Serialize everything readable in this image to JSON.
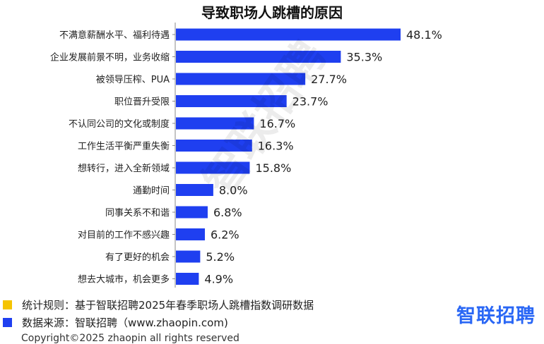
{
  "chart_data": {
    "type": "bar",
    "orientation": "horizontal",
    "title": "导致职场人跳槽的原因",
    "categories": [
      "不满意薪酬水平、福利待遇",
      "企业发展前景不明，业务收缩",
      "被领导压榨、PUA",
      "职位晋升受限",
      "不认同公司的文化或制度",
      "工作生活平衡严重失衡",
      "想转行，进入全新领域",
      "通勤时间",
      "同事关系不和谐",
      "对目前的工作不感兴趣",
      "有了更好的机会",
      "想去大城市，机会更多"
    ],
    "values": [
      48.1,
      35.3,
      27.7,
      23.7,
      16.7,
      16.3,
      15.8,
      8.0,
      6.8,
      6.2,
      5.2,
      4.9
    ],
    "value_labels": [
      "48.1%",
      "35.3%",
      "27.7%",
      "23.7%",
      "16.7%",
      "16.3%",
      "15.8%",
      "8.0%",
      "6.8%",
      "6.2%",
      "5.2%",
      "4.9%"
    ],
    "xlim": [
      0,
      48.1
    ],
    "bar_color": "#1f3ff0",
    "grid": false
  },
  "watermark": "智联招聘",
  "footnotes": [
    {
      "text": "统计规则：基于智联招聘2025年春季职场人跳槽指数调研数据",
      "color": "#f5c400"
    },
    {
      "text": "数据来源：智联招聘（www.zhaopin.com)",
      "color": "#1f3ff0"
    }
  ],
  "logo": "智联招聘",
  "copyright": "Copyright©2025 zhaopin all rights reserved"
}
